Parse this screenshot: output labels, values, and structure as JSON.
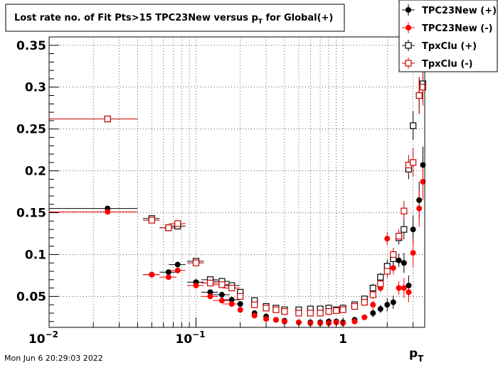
{
  "chart_data": {
    "type": "scatter",
    "title": "Lost rate no. of Fit Pts>15 TPC23New versus p",
    "title_sub": "T",
    "title_tail": " for Global(+)",
    "xlabel": "p",
    "xlabel_sub": "T",
    "x_scale": "log",
    "xlim": [
      0.01,
      3.6
    ],
    "ylim": [
      0.013,
      0.36
    ],
    "x_ticks": [
      {
        "value": 0.01,
        "base": "10",
        "exp": "−2"
      },
      {
        "value": 0.1,
        "base": "10",
        "exp": "−1"
      },
      {
        "value": 1,
        "base": "1",
        "exp": ""
      }
    ],
    "y_ticks": [
      {
        "value": 0.05,
        "label": "0.05"
      },
      {
        "value": 0.1,
        "label": "0.1"
      },
      {
        "value": 0.15,
        "label": "0.15"
      },
      {
        "value": 0.2,
        "label": "0.2"
      },
      {
        "value": 0.25,
        "label": "0.25"
      },
      {
        "value": 0.3,
        "label": "0.3"
      },
      {
        "value": 0.35,
        "label": "0.35"
      }
    ],
    "grid": true,
    "legend_position": "top-right",
    "series": [
      {
        "name": "TPC23New (+)",
        "color": "#000000",
        "marker": "filled-circle",
        "points": [
          [
            0.025,
            0.155
          ],
          [
            0.05,
            0.076
          ],
          [
            0.065,
            0.079
          ],
          [
            0.075,
            0.088
          ],
          [
            0.1,
            0.067
          ],
          [
            0.125,
            0.055
          ],
          [
            0.15,
            0.052
          ],
          [
            0.175,
            0.046
          ],
          [
            0.2,
            0.041
          ],
          [
            0.25,
            0.03
          ],
          [
            0.3,
            0.026
          ],
          [
            0.35,
            0.022
          ],
          [
            0.4,
            0.021
          ],
          [
            0.5,
            0.019
          ],
          [
            0.6,
            0.019
          ],
          [
            0.7,
            0.019
          ],
          [
            0.8,
            0.02
          ],
          [
            0.9,
            0.02
          ],
          [
            1.0,
            0.019
          ],
          [
            1.2,
            0.022
          ],
          [
            1.4,
            0.025
          ],
          [
            1.6,
            0.03
          ],
          [
            1.8,
            0.035
          ],
          [
            2.0,
            0.04
          ],
          [
            2.2,
            0.043
          ],
          [
            2.4,
            0.093
          ],
          [
            2.6,
            0.09
          ],
          [
            2.8,
            0.063
          ],
          [
            3.0,
            0.13
          ],
          [
            3.3,
            0.165
          ],
          [
            3.5,
            0.207
          ]
        ]
      },
      {
        "name": "TPC23New (-)",
        "color": "#ff0000",
        "marker": "filled-circle",
        "points": [
          [
            0.025,
            0.151
          ],
          [
            0.05,
            0.076
          ],
          [
            0.065,
            0.073
          ],
          [
            0.075,
            0.081
          ],
          [
            0.1,
            0.063
          ],
          [
            0.125,
            0.05
          ],
          [
            0.15,
            0.045
          ],
          [
            0.175,
            0.041
          ],
          [
            0.2,
            0.034
          ],
          [
            0.25,
            0.027
          ],
          [
            0.3,
            0.023
          ],
          [
            0.35,
            0.022
          ],
          [
            0.4,
            0.02
          ],
          [
            0.5,
            0.019
          ],
          [
            0.6,
            0.018
          ],
          [
            0.7,
            0.018
          ],
          [
            0.8,
            0.018
          ],
          [
            0.9,
            0.019
          ],
          [
            1.0,
            0.018
          ],
          [
            1.2,
            0.02
          ],
          [
            1.4,
            0.025
          ],
          [
            1.6,
            0.04
          ],
          [
            1.8,
            0.06
          ],
          [
            2.0,
            0.119
          ],
          [
            2.2,
            0.084
          ],
          [
            2.4,
            0.06
          ],
          [
            2.6,
            0.06
          ],
          [
            2.8,
            0.055
          ],
          [
            3.0,
            0.102
          ],
          [
            3.3,
            0.155
          ],
          [
            3.5,
            0.187
          ]
        ]
      },
      {
        "name": "TpxClu (+)",
        "color": "#000000",
        "marker": "open-square",
        "points": [
          [
            0.025,
            0.262
          ],
          [
            0.05,
            0.143
          ],
          [
            0.065,
            0.132
          ],
          [
            0.075,
            0.134
          ],
          [
            0.1,
            0.092
          ],
          [
            0.125,
            0.07
          ],
          [
            0.15,
            0.068
          ],
          [
            0.175,
            0.063
          ],
          [
            0.2,
            0.055
          ],
          [
            0.25,
            0.045
          ],
          [
            0.3,
            0.038
          ],
          [
            0.35,
            0.036
          ],
          [
            0.4,
            0.034
          ],
          [
            0.5,
            0.034
          ],
          [
            0.6,
            0.035
          ],
          [
            0.7,
            0.035
          ],
          [
            0.8,
            0.036
          ],
          [
            0.9,
            0.034
          ],
          [
            1.0,
            0.036
          ],
          [
            1.2,
            0.04
          ],
          [
            1.4,
            0.047
          ],
          [
            1.6,
            0.06
          ],
          [
            1.8,
            0.073
          ],
          [
            2.0,
            0.086
          ],
          [
            2.2,
            0.095
          ],
          [
            2.4,
            0.12
          ],
          [
            2.6,
            0.13
          ],
          [
            2.8,
            0.202
          ],
          [
            3.0,
            0.254
          ],
          [
            3.3,
            0.29
          ],
          [
            3.5,
            0.304
          ]
        ]
      },
      {
        "name": "TpxClu (-)",
        "color": "#cc0000",
        "marker": "open-square",
        "points": [
          [
            0.025,
            0.262
          ],
          [
            0.05,
            0.141
          ],
          [
            0.065,
            0.132
          ],
          [
            0.075,
            0.137
          ],
          [
            0.1,
            0.09
          ],
          [
            0.125,
            0.066
          ],
          [
            0.15,
            0.064
          ],
          [
            0.175,
            0.06
          ],
          [
            0.2,
            0.05
          ],
          [
            0.25,
            0.04
          ],
          [
            0.3,
            0.036
          ],
          [
            0.35,
            0.034
          ],
          [
            0.4,
            0.032
          ],
          [
            0.5,
            0.03
          ],
          [
            0.6,
            0.03
          ],
          [
            0.7,
            0.03
          ],
          [
            0.8,
            0.032
          ],
          [
            0.9,
            0.033
          ],
          [
            1.0,
            0.034
          ],
          [
            1.2,
            0.038
          ],
          [
            1.4,
            0.043
          ],
          [
            1.6,
            0.052
          ],
          [
            1.8,
            0.065
          ],
          [
            2.0,
            0.08
          ],
          [
            2.2,
            0.1
          ],
          [
            2.4,
            0.122
          ],
          [
            2.6,
            0.152
          ],
          [
            2.8,
            0.207
          ],
          [
            3.0,
            0.21
          ],
          [
            3.3,
            0.29
          ],
          [
            3.5,
            0.3
          ]
        ]
      }
    ]
  },
  "timestamp": "Mon Jun  6 20:29:03 2022"
}
